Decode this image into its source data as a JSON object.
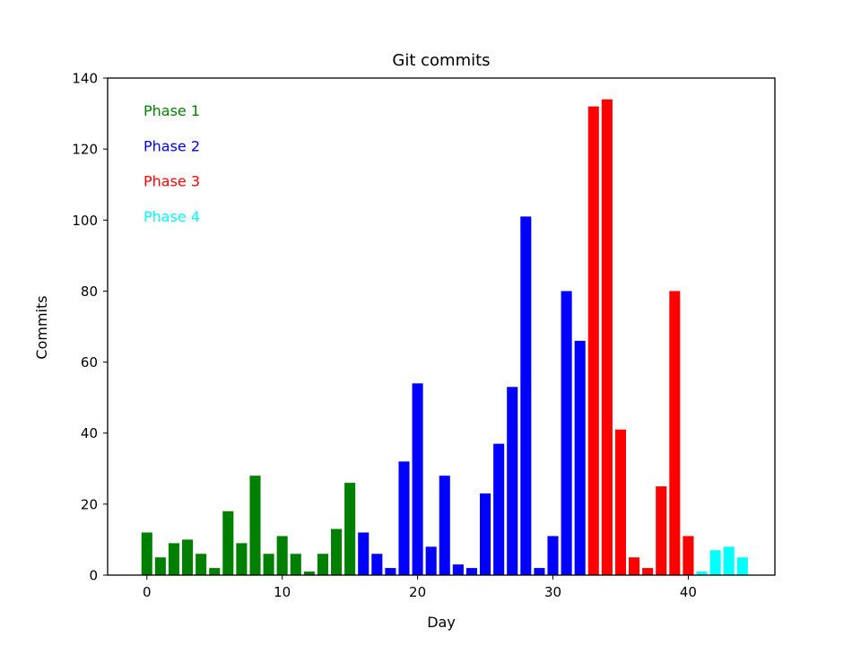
{
  "chart_data": {
    "type": "bar",
    "title": "Git commits",
    "xlabel": "Day",
    "ylabel": "Commits",
    "xlim": [
      -2.9,
      46.4
    ],
    "ylim": [
      0,
      140
    ],
    "xticks": [
      0,
      10,
      20,
      30,
      40
    ],
    "yticks": [
      0,
      20,
      40,
      60,
      80,
      100,
      120,
      140
    ],
    "grid": false,
    "legend_position": "top-left",
    "series": [
      {
        "name": "Phase 1",
        "color": "#008000",
        "x": [
          0,
          1,
          2,
          3,
          4,
          5,
          6,
          7,
          8,
          9,
          10,
          11,
          12,
          13,
          14,
          15
        ],
        "values": [
          12,
          5,
          9,
          10,
          6,
          2,
          18,
          9,
          28,
          6,
          11,
          6,
          1,
          6,
          13,
          26
        ]
      },
      {
        "name": "Phase 2",
        "color": "#0000ff",
        "x": [
          16,
          17,
          18,
          19,
          20,
          21,
          22,
          23,
          24,
          25,
          26,
          27,
          28,
          29,
          30,
          31,
          32
        ],
        "values": [
          12,
          6,
          2,
          32,
          54,
          8,
          28,
          3,
          2,
          23,
          37,
          53,
          101,
          2,
          11,
          80,
          66
        ]
      },
      {
        "name": "Phase 3",
        "color": "#ff0000",
        "x": [
          33,
          34,
          35,
          36,
          37,
          38,
          39,
          40
        ],
        "values": [
          132,
          134,
          41,
          5,
          2,
          25,
          80,
          11
        ]
      },
      {
        "name": "Phase 4",
        "color": "#00ffff",
        "x": [
          41,
          42,
          43,
          44
        ],
        "values": [
          1,
          7,
          8,
          5
        ]
      }
    ]
  }
}
